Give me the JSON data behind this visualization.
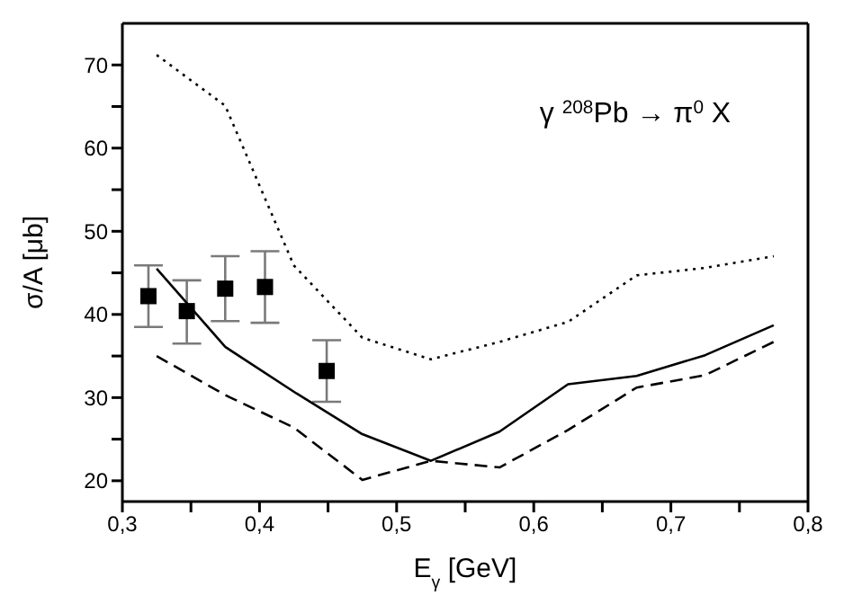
{
  "chart_data": {
    "type": "line",
    "xlabel": "E$_{γ}$ [GeV]",
    "ylabel": "σ/A [μb]",
    "annotations": [
      "γ $^{208}$Pb → π$^{0}$ X"
    ],
    "xlim": [
      0.3,
      0.8
    ],
    "ylim": [
      17.5,
      75
    ],
    "xticks": [
      {
        "value": 0.3,
        "label": "0,3"
      },
      {
        "value": 0.35,
        "label": null
      },
      {
        "value": 0.4,
        "label": "0,4"
      },
      {
        "value": 0.45,
        "label": null
      },
      {
        "value": 0.5,
        "label": "0,5"
      },
      {
        "value": 0.55,
        "label": null
      },
      {
        "value": 0.6,
        "label": "0,6"
      },
      {
        "value": 0.65,
        "label": null
      },
      {
        "value": 0.7,
        "label": "0,7"
      },
      {
        "value": 0.75,
        "label": null
      },
      {
        "value": 0.8,
        "label": "0,8"
      }
    ],
    "yticks": [
      20,
      {
        "value": 25,
        "label": null
      },
      30,
      {
        "value": 35,
        "label": null
      },
      40,
      {
        "value": 45,
        "label": null
      },
      50,
      {
        "value": 55,
        "label": null
      },
      60,
      {
        "value": 65,
        "label": null
      },
      70
    ],
    "grid": false,
    "legend": false,
    "series": [
      {
        "type": "scatter",
        "color": "#000000",
        "marker": "square",
        "x": [
          0.319,
          0.347,
          0.375,
          0.404,
          0.449
        ],
        "values": [
          42.2,
          40.4,
          43.1,
          43.3,
          33.2
        ],
        "errors": [
          [
            38.5,
            45.9
          ],
          [
            36.5,
            44.1
          ],
          [
            39.2,
            47.0
          ],
          [
            39.0,
            47.6
          ],
          [
            29.5,
            36.9
          ]
        ]
      },
      {
        "color": "#000000",
        "line_style": "solid",
        "marker": "none",
        "x": [
          0.325,
          0.375,
          0.427,
          0.475,
          0.525,
          0.575,
          0.625,
          0.675,
          0.725,
          0.775
        ],
        "values": [
          45.5,
          36.1,
          30.5,
          25.6,
          22.4,
          25.9,
          31.6,
          32.6,
          35.1,
          38.7
        ]
      },
      {
        "color": "#000000",
        "line_style": "dashed",
        "marker": "none",
        "x": [
          0.325,
          0.375,
          0.425,
          0.475,
          0.525,
          0.575,
          0.625,
          0.675,
          0.725,
          0.775
        ],
        "values": [
          35.0,
          30.3,
          26.4,
          20.1,
          22.4,
          21.6,
          26.1,
          31.2,
          32.7,
          36.7
        ]
      },
      {
        "color": "#000000",
        "line_style": "dotted",
        "marker": "none",
        "x": [
          0.325,
          0.375,
          0.425,
          0.475,
          0.525,
          0.575,
          0.625,
          0.675,
          0.725,
          0.775
        ],
        "values": [
          71.2,
          65.1,
          45.9,
          37.2,
          34.6,
          36.7,
          39.1,
          44.7,
          45.6,
          47.0
        ]
      }
    ]
  }
}
